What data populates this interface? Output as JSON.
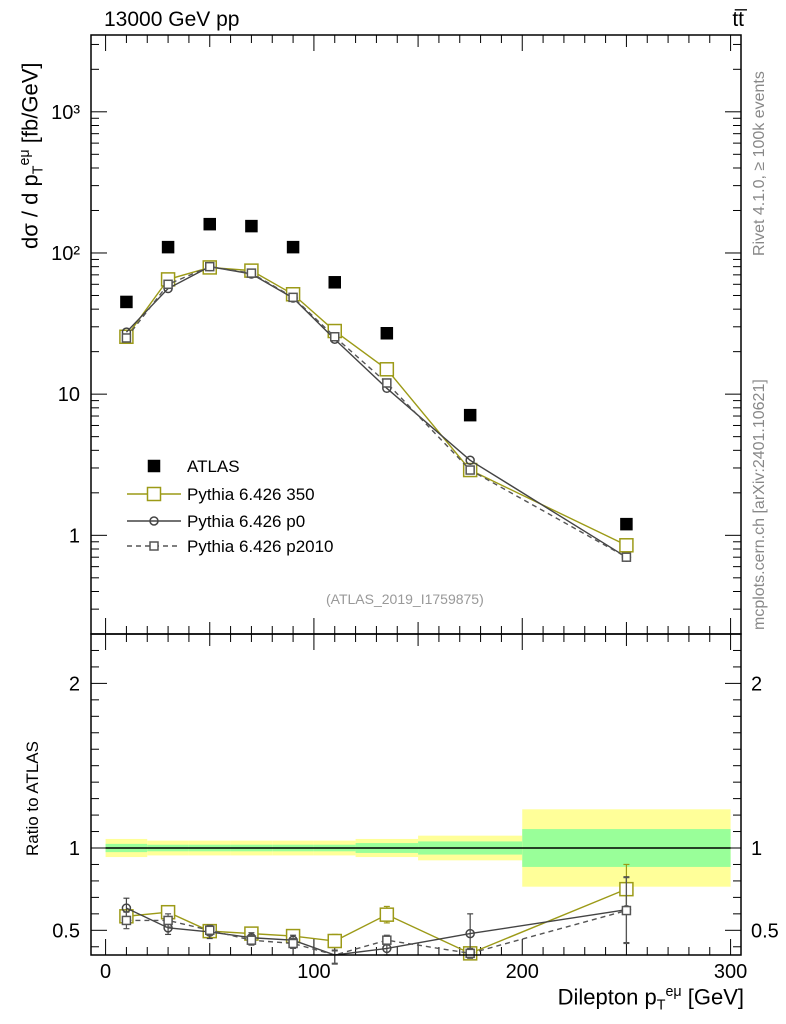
{
  "header": {
    "left": "13000 GeV pp",
    "right": "tt̅"
  },
  "side_text": {
    "rivet": "Rivet 4.1.0, ≥ 100k events",
    "mcplots": "mcplots.cern.ch [arXiv:2401.10621]"
  },
  "analysis_id": "(ATLAS_2019_I1759875)",
  "colors": {
    "atlas": "#000000",
    "p350": "#9c9a17",
    "p0": "#444444",
    "p2010": "#555555",
    "band_inner": "#99ff99",
    "band_outer": "#ffff99"
  },
  "chart_data": [
    {
      "type": "scatter",
      "panel": "main",
      "yscale": "log",
      "ylabel": "dσ / d p_T^eμ [fb/GeV]",
      "ylim": [
        0.2,
        3500
      ],
      "xlim": [
        -7,
        305
      ],
      "ytick_labels": [
        "1",
        "10",
        "10²",
        "10³"
      ],
      "legend": {
        "position": "bottom-left",
        "entries": [
          "ATLAS",
          "Pythia 6.426 350",
          "Pythia 6.426 p0",
          "Pythia 6.426 p2010"
        ]
      },
      "series": [
        {
          "name": "ATLAS",
          "style": "marker-square-filled",
          "x": [
            10,
            30,
            50,
            70,
            90,
            110,
            135,
            175,
            250
          ],
          "y": [
            45,
            110,
            160,
            155,
            110,
            62,
            27,
            7.1,
            1.2
          ]
        },
        {
          "name": "Pythia 6.426 350",
          "style": "solid-open-square",
          "x": [
            10,
            30,
            50,
            70,
            90,
            110,
            135,
            175,
            250
          ],
          "y": [
            25.5,
            65,
            79,
            75,
            51,
            28,
            15,
            2.9,
            0.85
          ]
        },
        {
          "name": "Pythia 6.426 p0",
          "style": "solid-open-circle",
          "x": [
            10,
            30,
            50,
            70,
            90,
            110,
            135,
            175,
            250
          ],
          "y": [
            27.5,
            56,
            80,
            71,
            48,
            24.5,
            11,
            3.4,
            0.7
          ]
        },
        {
          "name": "Pythia 6.426 p2010",
          "style": "dashed-open-square",
          "x": [
            10,
            30,
            50,
            70,
            90,
            110,
            135,
            175,
            250
          ],
          "y": [
            25,
            60,
            80,
            72,
            48.5,
            25.5,
            12,
            2.9,
            0.7
          ]
        }
      ]
    },
    {
      "type": "scatter",
      "panel": "ratio",
      "ylabel": "Ratio to ATLAS",
      "xlabel": "Dilepton p_T^eμ [GeV]",
      "ylim": [
        0.35,
        2.3
      ],
      "xlim": [
        -7,
        305
      ],
      "xticks": [
        0,
        100,
        200,
        300
      ],
      "yticks": [
        0.5,
        1,
        2
      ],
      "bands": [
        {
          "x0": 0,
          "x1": 20,
          "inner": [
            0.975,
            1.025
          ],
          "outer": [
            0.945,
            1.055
          ]
        },
        {
          "x0": 20,
          "x1": 40,
          "inner": [
            0.98,
            1.02
          ],
          "outer": [
            0.955,
            1.045
          ]
        },
        {
          "x0": 40,
          "x1": 60,
          "inner": [
            0.98,
            1.02
          ],
          "outer": [
            0.955,
            1.045
          ]
        },
        {
          "x0": 60,
          "x1": 80,
          "inner": [
            0.98,
            1.02
          ],
          "outer": [
            0.955,
            1.045
          ]
        },
        {
          "x0": 80,
          "x1": 100,
          "inner": [
            0.98,
            1.02
          ],
          "outer": [
            0.955,
            1.045
          ]
        },
        {
          "x0": 100,
          "x1": 120,
          "inner": [
            0.98,
            1.02
          ],
          "outer": [
            0.955,
            1.045
          ]
        },
        {
          "x0": 120,
          "x1": 150,
          "inner": [
            0.97,
            1.03
          ],
          "outer": [
            0.945,
            1.055
          ]
        },
        {
          "x0": 150,
          "x1": 200,
          "inner": [
            0.96,
            1.04
          ],
          "outer": [
            0.925,
            1.075
          ]
        },
        {
          "x0": 200,
          "x1": 300,
          "inner": [
            0.885,
            1.115
          ],
          "outer": [
            0.765,
            1.235
          ]
        }
      ],
      "series": [
        {
          "name": "Pythia 6.426 350",
          "x": [
            10,
            30,
            50,
            70,
            90,
            110,
            135,
            175,
            250
          ],
          "y": [
            0.585,
            0.61,
            0.495,
            0.48,
            0.465,
            0.435,
            0.595,
            0.36,
            0.75
          ],
          "err": [
            0.03,
            0.03,
            0.03,
            0.03,
            0.03,
            0.04,
            0.05,
            0.02,
            0.15
          ]
        },
        {
          "name": "Pythia 6.426 p0",
          "x": [
            10,
            30,
            50,
            70,
            90,
            110,
            135,
            175,
            250
          ],
          "y": [
            0.635,
            0.515,
            0.49,
            0.455,
            0.44,
            0.335,
            0.39,
            0.48,
            0.625
          ],
          "err": [
            0.06,
            0.04,
            0.04,
            0.03,
            0.03,
            0.04,
            0.04,
            0.12,
            0.2
          ]
        },
        {
          "name": "Pythia 6.426 p2010",
          "x": [
            10,
            30,
            50,
            70,
            90,
            110,
            135,
            175,
            250
          ],
          "y": [
            0.56,
            0.56,
            0.5,
            0.44,
            0.42,
            0.34,
            0.44,
            0.36,
            0.62
          ],
          "err": [
            0.05,
            0.04,
            0.03,
            0.03,
            0.03,
            0.04,
            0.03,
            0.03,
            0.2
          ]
        }
      ]
    }
  ]
}
